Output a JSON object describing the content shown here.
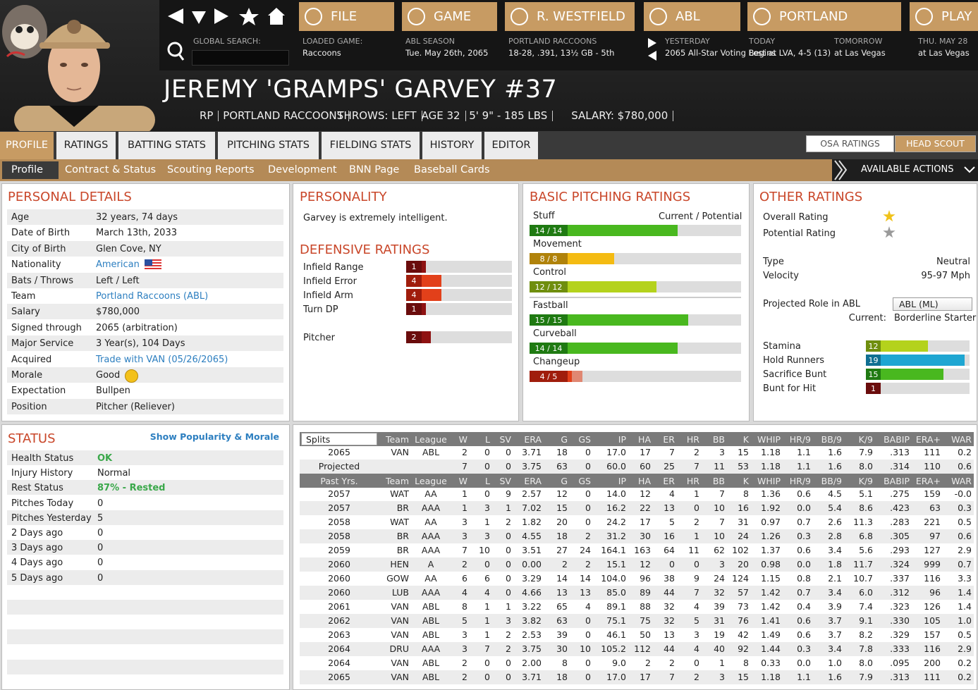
{
  "nav": {
    "buttons": [
      "FILE",
      "GAME",
      "R. WESTFIELD",
      "ABL",
      "PORTLAND",
      "PLAY"
    ],
    "search_label": "GLOBAL SEARCH:",
    "info": [
      {
        "label": "LOADED GAME:",
        "value": "Raccoons"
      },
      {
        "label": "ABL SEASON",
        "value": "Tue. May 26th, 2065"
      },
      {
        "label": "PORTLAND RACCOONS",
        "value": "18-28, .391, 13½ GB - 5th"
      },
      {
        "label": "YESTERDAY",
        "value": "2065 All-Star Voting Begins"
      },
      {
        "label": "TODAY",
        "value": "Lost at LVA, 4-5 (13)"
      },
      {
        "label": "TOMORROW",
        "value": "at Las Vegas"
      },
      {
        "label": "THU. MAY 28",
        "value": "at Las Vegas"
      }
    ]
  },
  "player": {
    "name": "JEREMY 'GRAMPS' GARVEY  #37",
    "details": [
      "RP",
      "PORTLAND RACCOONS",
      "THROWS: LEFT",
      "AGE 32",
      "5' 9\" - 185 LBS",
      "SALARY: $780,000"
    ]
  },
  "tabs": [
    "PROFILE",
    "RATINGS",
    "BATTING STATS",
    "PITCHING STATS",
    "FIELDING STATS",
    "HISTORY",
    "EDITOR"
  ],
  "rating_views": [
    "OSA RATINGS",
    "HEAD SCOUT"
  ],
  "subtabs": [
    "Profile",
    "Contract & Status",
    "Scouting Reports",
    "Development",
    "BNN Page",
    "Baseball Cards"
  ],
  "actions": "AVAILABLE ACTIONS",
  "personal_details": {
    "title": "PERSONAL DETAILS",
    "rows": [
      {
        "label": "Age",
        "value": "32 years, 74 days"
      },
      {
        "label": "Date of Birth",
        "value": "March 13th, 2033"
      },
      {
        "label": "City of Birth",
        "value": "Glen Cove, NY"
      },
      {
        "label": "Nationality",
        "value": "American",
        "link": true
      },
      {
        "label": "Bats / Throws",
        "value": "Left / Left"
      },
      {
        "label": "Team",
        "value": "Portland Raccoons (ABL)",
        "link": true
      },
      {
        "label": "Salary",
        "value": "$780,000"
      },
      {
        "label": "Signed through",
        "value": "2065 (arbitration)"
      },
      {
        "label": "Major Service",
        "value": "3 Year(s), 104 Days"
      },
      {
        "label": "Acquired",
        "value": "Trade with VAN (05/26/2065)",
        "link": true
      },
      {
        "label": "Morale",
        "value": "Good"
      },
      {
        "label": "Expectation",
        "value": "Bullpen"
      },
      {
        "label": "Position",
        "value": "Pitcher (Reliever)"
      }
    ]
  },
  "personality": {
    "title": "PERSONALITY",
    "text": "Garvey is extremely intelligent."
  },
  "defensive_ratings": {
    "title": "DEFENSIVE RATINGS",
    "scale": [
      0,
      20
    ],
    "rows": [
      {
        "label": "Infield Range",
        "value": 1
      },
      {
        "label": "Infield Error",
        "value": 4
      },
      {
        "label": "Infield Arm",
        "value": 4
      },
      {
        "label": "Turn DP",
        "value": 1
      },
      {
        "label": "Pitcher",
        "value": 2
      }
    ]
  },
  "pitching_ratings": {
    "title": "BASIC PITCHING RATINGS",
    "header": "Current / Potential",
    "scale": [
      0,
      20
    ],
    "rows": [
      {
        "label": "Stuff",
        "current": 14,
        "potential": 14,
        "value_label": "14 / 14"
      },
      {
        "label": "Movement",
        "current": 8,
        "potential": 8,
        "value_label": "8 / 8"
      },
      {
        "label": "Control",
        "current": 12,
        "potential": 12,
        "value_label": "12 / 12"
      },
      {
        "label": "Fastball",
        "current": 15,
        "potential": 15,
        "value_label": "15 / 15"
      },
      {
        "label": "Curveball",
        "current": 14,
        "potential": 14,
        "value_label": "14 / 14"
      },
      {
        "label": "Changeup",
        "current": 4,
        "potential": 5,
        "value_label": "4 / 5"
      }
    ]
  },
  "other_ratings": {
    "title": "OTHER RATINGS",
    "star_rows": [
      "Overall Rating",
      "Potential Rating"
    ],
    "info": [
      {
        "label": "Type",
        "value": "Neutral"
      },
      {
        "label": "Velocity",
        "value": "95-97 Mph"
      }
    ],
    "role_label": "Projected Role in ABL",
    "role_select": "ABL (ML)",
    "current_label": "Current:",
    "current_value": "Borderline Starter",
    "scale": [
      0,
      20
    ],
    "bars": [
      {
        "label": "Stamina",
        "value": 12
      },
      {
        "label": "Hold Runners",
        "value": 19
      },
      {
        "label": "Sacrifice Bunt",
        "value": 15
      },
      {
        "label": "Bunt for Hit",
        "value": 1
      }
    ]
  },
  "status": {
    "title": "STATUS",
    "link": "Show Popularity & Morale",
    "rows": [
      {
        "label": "Health Status",
        "value": "OK",
        "highlight": true
      },
      {
        "label": "Injury History",
        "value": "Normal"
      },
      {
        "label": "Rest Status",
        "value": "87% - Rested",
        "highlight": true
      },
      {
        "label": "Pitches Today",
        "value": "0"
      },
      {
        "label": "Pitches Yesterday",
        "value": "5"
      },
      {
        "label": "2 Days ago",
        "value": "0"
      },
      {
        "label": "3 Days ago",
        "value": "0"
      },
      {
        "label": "4 Days ago",
        "value": "0"
      },
      {
        "label": "5 Days ago",
        "value": "0"
      }
    ]
  },
  "stats": {
    "splits_label": "Splits",
    "past_label": "Past Yrs.",
    "columns": [
      "Team",
      "League",
      "W",
      "L",
      "SV",
      "ERA",
      "G",
      "GS",
      "IP",
      "HA",
      "ER",
      "HR",
      "BB",
      "K",
      "WHIP",
      "HR/9",
      "BB/9",
      "K/9",
      "BABIP",
      "ERA+",
      "WAR"
    ],
    "current_rows": [
      [
        "2065",
        "VAN",
        "ABL",
        "2",
        "0",
        "0",
        "3.71",
        "18",
        "0",
        "17.0",
        "17",
        "7",
        "2",
        "3",
        "15",
        "1.18",
        "1.1",
        "1.6",
        "7.9",
        ".313",
        "111",
        "0.2"
      ],
      [
        "Projected",
        null,
        null,
        "7",
        "0",
        "0",
        "3.75",
        "63",
        "0",
        "60.0",
        "60",
        "25",
        "7",
        "11",
        "53",
        "1.18",
        "1.1",
        "1.6",
        "8.0",
        ".314",
        "110",
        "0.6"
      ]
    ],
    "past_rows": [
      [
        "2057",
        "WAT",
        "AA",
        "1",
        "0",
        "9",
        "2.57",
        "12",
        "0",
        "14.0",
        "12",
        "4",
        "1",
        "7",
        "8",
        "1.36",
        "0.6",
        "4.5",
        "5.1",
        ".275",
        "159",
        "-0.0"
      ],
      [
        "2057",
        "BR",
        "AAA",
        "1",
        "3",
        "1",
        "7.02",
        "15",
        "0",
        "16.2",
        "22",
        "13",
        "0",
        "10",
        "16",
        "1.92",
        "0.0",
        "5.4",
        "8.6",
        ".423",
        "63",
        "0.3"
      ],
      [
        "2058",
        "WAT",
        "AA",
        "3",
        "1",
        "2",
        "1.82",
        "20",
        "0",
        "24.2",
        "17",
        "5",
        "2",
        "7",
        "31",
        "0.97",
        "0.7",
        "2.6",
        "11.3",
        ".283",
        "221",
        "0.5"
      ],
      [
        "2058",
        "BR",
        "AAA",
        "3",
        "3",
        "0",
        "4.55",
        "18",
        "2",
        "31.2",
        "30",
        "16",
        "1",
        "10",
        "24",
        "1.26",
        "0.3",
        "2.8",
        "6.8",
        ".305",
        "97",
        "0.6"
      ],
      [
        "2059",
        "BR",
        "AAA",
        "7",
        "10",
        "0",
        "3.51",
        "27",
        "24",
        "164.1",
        "163",
        "64",
        "11",
        "62",
        "102",
        "1.37",
        "0.6",
        "3.4",
        "5.6",
        ".293",
        "127",
        "2.9"
      ],
      [
        "2060",
        "HEN",
        "A",
        "2",
        "0",
        "0",
        "0.00",
        "2",
        "2",
        "15.1",
        "12",
        "0",
        "0",
        "3",
        "20",
        "0.98",
        "0.0",
        "1.8",
        "11.7",
        ".324",
        "999",
        "0.7"
      ],
      [
        "2060",
        "GOW",
        "AA",
        "6",
        "6",
        "0",
        "3.29",
        "14",
        "14",
        "104.0",
        "96",
        "38",
        "9",
        "24",
        "124",
        "1.15",
        "0.8",
        "2.1",
        "10.7",
        ".337",
        "116",
        "3.3"
      ],
      [
        "2060",
        "LUB",
        "AAA",
        "4",
        "4",
        "0",
        "4.66",
        "13",
        "13",
        "85.0",
        "89",
        "44",
        "7",
        "32",
        "57",
        "1.42",
        "0.7",
        "3.4",
        "6.0",
        ".312",
        "96",
        "1.4"
      ],
      [
        "2061",
        "VAN",
        "ABL",
        "8",
        "1",
        "1",
        "3.22",
        "65",
        "4",
        "89.1",
        "88",
        "32",
        "4",
        "39",
        "73",
        "1.42",
        "0.4",
        "3.9",
        "7.4",
        ".323",
        "126",
        "1.4"
      ],
      [
        "2062",
        "VAN",
        "ABL",
        "5",
        "1",
        "3",
        "3.82",
        "63",
        "0",
        "75.1",
        "75",
        "32",
        "5",
        "31",
        "76",
        "1.41",
        "0.6",
        "3.7",
        "9.1",
        ".330",
        "105",
        "1.0"
      ],
      [
        "2063",
        "VAN",
        "ABL",
        "3",
        "1",
        "2",
        "2.53",
        "39",
        "0",
        "46.1",
        "50",
        "13",
        "3",
        "19",
        "42",
        "1.49",
        "0.6",
        "3.7",
        "8.2",
        ".329",
        "157",
        "0.5"
      ],
      [
        "2064",
        "DRU",
        "AAA",
        "3",
        "7",
        "2",
        "3.75",
        "30",
        "10",
        "105.2",
        "112",
        "44",
        "4",
        "40",
        "92",
        "1.44",
        "0.3",
        "3.4",
        "7.8",
        ".333",
        "116",
        "2.9"
      ],
      [
        "2064",
        "VAN",
        "ABL",
        "2",
        "0",
        "0",
        "2.00",
        "8",
        "0",
        "9.0",
        "2",
        "2",
        "0",
        "1",
        "8",
        "0.33",
        "0.0",
        "1.0",
        "8.0",
        ".095",
        "200",
        "0.2"
      ],
      [
        "2065",
        "VAN",
        "ABL",
        "2",
        "0",
        "0",
        "3.71",
        "18",
        "0",
        "17.0",
        "17",
        "7",
        "2",
        "3",
        "15",
        "1.18",
        "1.1",
        "1.6",
        "7.9",
        ".313",
        "111",
        "0.2"
      ]
    ]
  }
}
